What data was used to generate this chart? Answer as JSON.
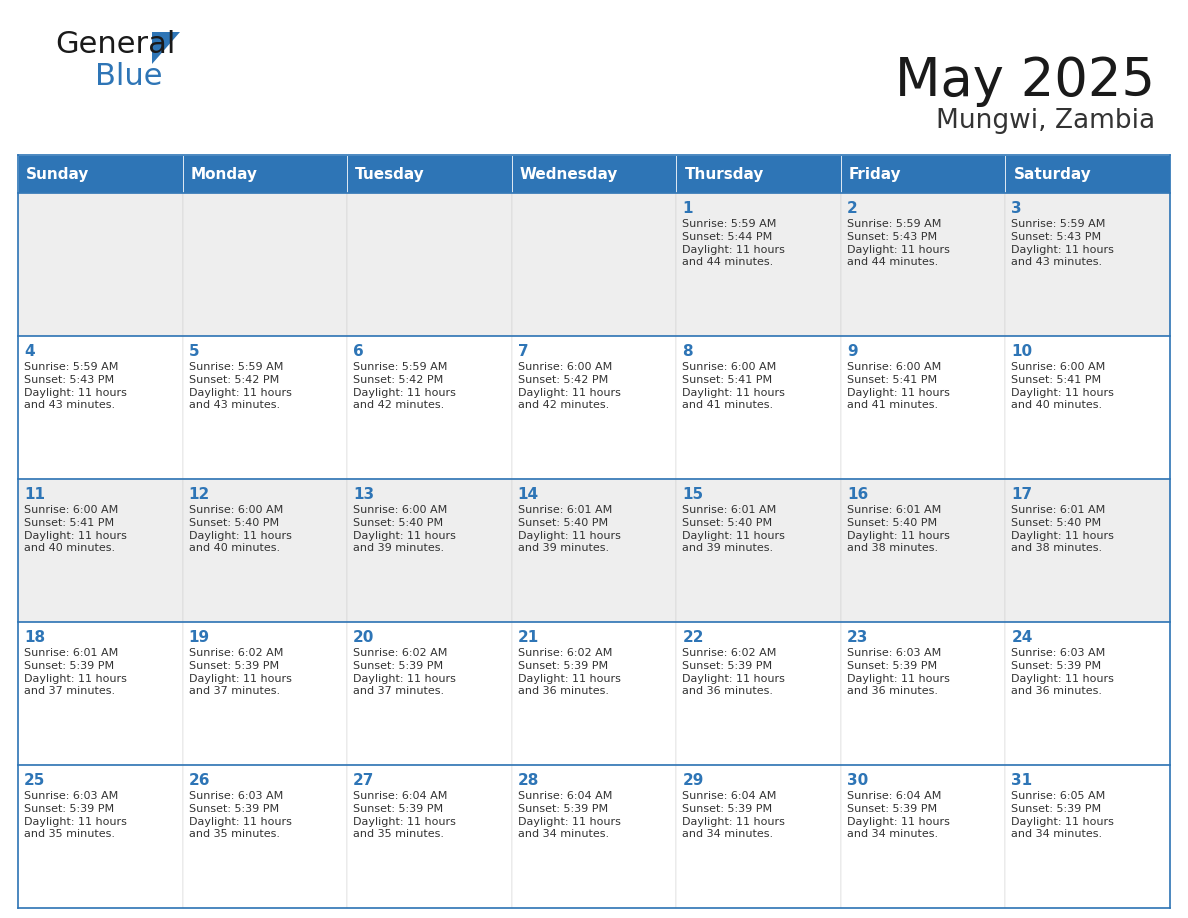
{
  "title": "May 2025",
  "subtitle": "Mungwi, Zambia",
  "header_bg": "#2E75B6",
  "header_text_color": "#FFFFFF",
  "border_color": "#2E75B6",
  "cell_border_color": "#AAAAAA",
  "day_names": [
    "Sunday",
    "Monday",
    "Tuesday",
    "Wednesday",
    "Thursday",
    "Friday",
    "Saturday"
  ],
  "row_bgs": [
    "#EEEEEE",
    "#FFFFFF",
    "#EEEEEE",
    "#FFFFFF",
    "#FFFFFF"
  ],
  "weeks": [
    [
      {
        "day": "",
        "info": ""
      },
      {
        "day": "",
        "info": ""
      },
      {
        "day": "",
        "info": ""
      },
      {
        "day": "",
        "info": ""
      },
      {
        "day": "1",
        "info": "Sunrise: 5:59 AM\nSunset: 5:44 PM\nDaylight: 11 hours\nand 44 minutes."
      },
      {
        "day": "2",
        "info": "Sunrise: 5:59 AM\nSunset: 5:43 PM\nDaylight: 11 hours\nand 44 minutes."
      },
      {
        "day": "3",
        "info": "Sunrise: 5:59 AM\nSunset: 5:43 PM\nDaylight: 11 hours\nand 43 minutes."
      }
    ],
    [
      {
        "day": "4",
        "info": "Sunrise: 5:59 AM\nSunset: 5:43 PM\nDaylight: 11 hours\nand 43 minutes."
      },
      {
        "day": "5",
        "info": "Sunrise: 5:59 AM\nSunset: 5:42 PM\nDaylight: 11 hours\nand 43 minutes."
      },
      {
        "day": "6",
        "info": "Sunrise: 5:59 AM\nSunset: 5:42 PM\nDaylight: 11 hours\nand 42 minutes."
      },
      {
        "day": "7",
        "info": "Sunrise: 6:00 AM\nSunset: 5:42 PM\nDaylight: 11 hours\nand 42 minutes."
      },
      {
        "day": "8",
        "info": "Sunrise: 6:00 AM\nSunset: 5:41 PM\nDaylight: 11 hours\nand 41 minutes."
      },
      {
        "day": "9",
        "info": "Sunrise: 6:00 AM\nSunset: 5:41 PM\nDaylight: 11 hours\nand 41 minutes."
      },
      {
        "day": "10",
        "info": "Sunrise: 6:00 AM\nSunset: 5:41 PM\nDaylight: 11 hours\nand 40 minutes."
      }
    ],
    [
      {
        "day": "11",
        "info": "Sunrise: 6:00 AM\nSunset: 5:41 PM\nDaylight: 11 hours\nand 40 minutes."
      },
      {
        "day": "12",
        "info": "Sunrise: 6:00 AM\nSunset: 5:40 PM\nDaylight: 11 hours\nand 40 minutes."
      },
      {
        "day": "13",
        "info": "Sunrise: 6:00 AM\nSunset: 5:40 PM\nDaylight: 11 hours\nand 39 minutes."
      },
      {
        "day": "14",
        "info": "Sunrise: 6:01 AM\nSunset: 5:40 PM\nDaylight: 11 hours\nand 39 minutes."
      },
      {
        "day": "15",
        "info": "Sunrise: 6:01 AM\nSunset: 5:40 PM\nDaylight: 11 hours\nand 39 minutes."
      },
      {
        "day": "16",
        "info": "Sunrise: 6:01 AM\nSunset: 5:40 PM\nDaylight: 11 hours\nand 38 minutes."
      },
      {
        "day": "17",
        "info": "Sunrise: 6:01 AM\nSunset: 5:40 PM\nDaylight: 11 hours\nand 38 minutes."
      }
    ],
    [
      {
        "day": "18",
        "info": "Sunrise: 6:01 AM\nSunset: 5:39 PM\nDaylight: 11 hours\nand 37 minutes."
      },
      {
        "day": "19",
        "info": "Sunrise: 6:02 AM\nSunset: 5:39 PM\nDaylight: 11 hours\nand 37 minutes."
      },
      {
        "day": "20",
        "info": "Sunrise: 6:02 AM\nSunset: 5:39 PM\nDaylight: 11 hours\nand 37 minutes."
      },
      {
        "day": "21",
        "info": "Sunrise: 6:02 AM\nSunset: 5:39 PM\nDaylight: 11 hours\nand 36 minutes."
      },
      {
        "day": "22",
        "info": "Sunrise: 6:02 AM\nSunset: 5:39 PM\nDaylight: 11 hours\nand 36 minutes."
      },
      {
        "day": "23",
        "info": "Sunrise: 6:03 AM\nSunset: 5:39 PM\nDaylight: 11 hours\nand 36 minutes."
      },
      {
        "day": "24",
        "info": "Sunrise: 6:03 AM\nSunset: 5:39 PM\nDaylight: 11 hours\nand 36 minutes."
      }
    ],
    [
      {
        "day": "25",
        "info": "Sunrise: 6:03 AM\nSunset: 5:39 PM\nDaylight: 11 hours\nand 35 minutes."
      },
      {
        "day": "26",
        "info": "Sunrise: 6:03 AM\nSunset: 5:39 PM\nDaylight: 11 hours\nand 35 minutes."
      },
      {
        "day": "27",
        "info": "Sunrise: 6:04 AM\nSunset: 5:39 PM\nDaylight: 11 hours\nand 35 minutes."
      },
      {
        "day": "28",
        "info": "Sunrise: 6:04 AM\nSunset: 5:39 PM\nDaylight: 11 hours\nand 34 minutes."
      },
      {
        "day": "29",
        "info": "Sunrise: 6:04 AM\nSunset: 5:39 PM\nDaylight: 11 hours\nand 34 minutes."
      },
      {
        "day": "30",
        "info": "Sunrise: 6:04 AM\nSunset: 5:39 PM\nDaylight: 11 hours\nand 34 minutes."
      },
      {
        "day": "31",
        "info": "Sunrise: 6:05 AM\nSunset: 5:39 PM\nDaylight: 11 hours\nand 34 minutes."
      }
    ]
  ]
}
